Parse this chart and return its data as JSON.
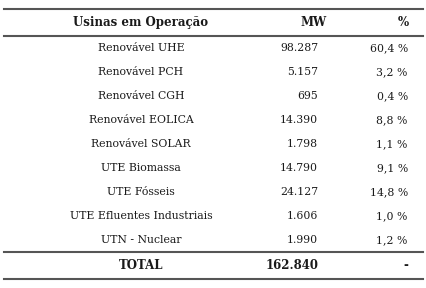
{
  "header": [
    "Usinas em Operação",
    "MW",
    "%"
  ],
  "rows": [
    [
      "Renovável UHE",
      "98.287",
      "60,4 %"
    ],
    [
      "Renovável PCH",
      "5.157",
      "3,2 %"
    ],
    [
      "Renovável CGH",
      "695",
      "0,4 %"
    ],
    [
      "Renovável EOLICA",
      "14.390",
      "8,8 %"
    ],
    [
      "Renovável SOLAR",
      "1.798",
      "1,1 %"
    ],
    [
      "UTE Biomassa",
      "14.790",
      "9,1 %"
    ],
    [
      "UTE Fósseis",
      "24.127",
      "14,8 %"
    ],
    [
      "UTE Efluentes Industriais",
      "1.606",
      "1,0 %"
    ],
    [
      "UTN - Nuclear",
      "1.990",
      "1,2 %"
    ]
  ],
  "footer": [
    "TOTAL",
    "162.840",
    "-"
  ],
  "bg_color": "#ffffff",
  "text_color": "#1a1a1a",
  "header_fontsize": 8.5,
  "row_fontsize": 7.8,
  "footer_fontsize": 8.5,
  "line_color": "#555555",
  "lw_thick": 1.5
}
